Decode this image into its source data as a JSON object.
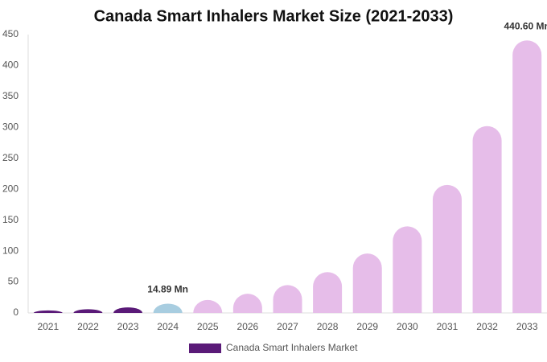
{
  "chart_data": {
    "type": "bar",
    "title": "Canada Smart Inhalers Market Size (2021-2033)",
    "categories": [
      "2021",
      "2022",
      "2023",
      "2024",
      "2025",
      "2026",
      "2027",
      "2028",
      "2029",
      "2030",
      "2031",
      "2032",
      "2033"
    ],
    "series": [
      {
        "name": "Canada Smart Inhalers Market",
        "color": "#5a1a78",
        "values": [
          4,
          6,
          9,
          14.89,
          21,
          31,
          45,
          66,
          96,
          140,
          207,
          302,
          440.6
        ],
        "value_labels": [
          null,
          null,
          null,
          "14.89 Mn",
          null,
          null,
          null,
          null,
          null,
          null,
          null,
          null,
          "440.60 Mn"
        ],
        "colors": [
          "#5a1a78",
          "#5a1a78",
          "#5a1a78",
          "#a8cde0",
          "#e6bde9",
          "#e6bde9",
          "#e6bde9",
          "#e6bde9",
          "#e6bde9",
          "#e6bde9",
          "#e6bde9",
          "#e6bde9",
          "#e6bde9"
        ]
      }
    ],
    "ylim": [
      0,
      450
    ],
    "yticks": [
      0,
      50,
      100,
      150,
      200,
      250,
      300,
      350,
      400,
      450
    ],
    "grid": false,
    "legend": "bottom"
  }
}
